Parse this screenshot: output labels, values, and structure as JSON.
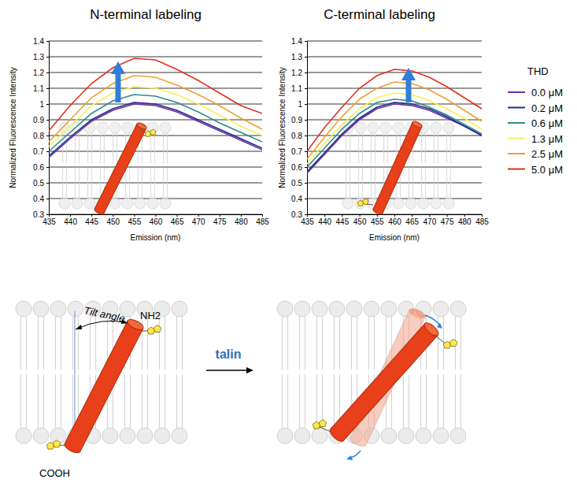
{
  "chart_data": [
    {
      "type": "line",
      "title": "N-terminal labeling",
      "x_label": "Emission (nm)",
      "y_label": "Normalized Fluorescence Intensity",
      "x": [
        435,
        440,
        445,
        450,
        455,
        460,
        465,
        470,
        475,
        480,
        485
      ],
      "xlim": [
        435,
        485
      ],
      "xticks": [
        435,
        440,
        445,
        450,
        455,
        460,
        465,
        470,
        475,
        480,
        485
      ],
      "ylim": [
        0.3,
        1.4
      ],
      "yticks": [
        0.3,
        0.4,
        0.5,
        0.6,
        0.7,
        0.8,
        0.9,
        1,
        1.1,
        1.2,
        1.3,
        1.4
      ],
      "grid": true,
      "series": [
        {
          "color": "#7030a0",
          "values": [
            0.66,
            0.78,
            0.89,
            0.96,
            1.0,
            0.99,
            0.95,
            0.89,
            0.83,
            0.77,
            0.71
          ]
        },
        {
          "color": "#1f2a8f",
          "values": [
            0.67,
            0.79,
            0.9,
            0.97,
            1.01,
            1.0,
            0.96,
            0.9,
            0.84,
            0.78,
            0.72
          ]
        },
        {
          "color": "#2e8b8b",
          "values": [
            0.7,
            0.82,
            0.94,
            1.02,
            1.06,
            1.05,
            1.01,
            0.95,
            0.88,
            0.82,
            0.76
          ]
        },
        {
          "color": "#f2f25a",
          "values": [
            0.73,
            0.86,
            0.99,
            1.07,
            1.11,
            1.1,
            1.06,
            1.0,
            0.93,
            0.86,
            0.8
          ]
        },
        {
          "color": "#f0a030",
          "values": [
            0.76,
            0.9,
            1.04,
            1.13,
            1.18,
            1.17,
            1.12,
            1.06,
            0.99,
            0.91,
            0.84
          ]
        },
        {
          "color": "#e0301e",
          "values": [
            0.83,
            0.99,
            1.13,
            1.23,
            1.29,
            1.28,
            1.22,
            1.15,
            1.07,
            0.99,
            0.94
          ]
        }
      ]
    },
    {
      "type": "line",
      "title": "C-terminal labeling",
      "x_label": "Emission (nm)",
      "y_label": "Normalized Fluorescence Intensity",
      "x": [
        435,
        440,
        445,
        450,
        455,
        460,
        465,
        470,
        475,
        480,
        485
      ],
      "xlim": [
        435,
        485
      ],
      "xticks": [
        435,
        440,
        445,
        450,
        455,
        460,
        465,
        470,
        475,
        480,
        485
      ],
      "ylim": [
        0.3,
        1.4
      ],
      "yticks": [
        0.3,
        0.4,
        0.5,
        0.6,
        0.7,
        0.8,
        0.9,
        1,
        1.1,
        1.2,
        1.3,
        1.4
      ],
      "grid": true,
      "legend": "right",
      "legend_title": "THD",
      "series": [
        {
          "name": "0.0 μM",
          "color": "#7030a0",
          "values": [
            0.56,
            0.68,
            0.8,
            0.9,
            0.97,
            1.0,
            0.99,
            0.96,
            0.91,
            0.86,
            0.8
          ]
        },
        {
          "name": "0.2 μM",
          "color": "#1f2a8f",
          "values": [
            0.57,
            0.69,
            0.81,
            0.91,
            0.98,
            1.01,
            1.0,
            0.97,
            0.92,
            0.86,
            0.8
          ]
        },
        {
          "name": "0.6 μM",
          "color": "#2e8b8b",
          "values": [
            0.6,
            0.72,
            0.84,
            0.94,
            1.01,
            1.03,
            1.02,
            0.98,
            0.93,
            0.87,
            0.81
          ]
        },
        {
          "name": "1.3 μM",
          "color": "#f2f25a",
          "values": [
            0.62,
            0.75,
            0.87,
            0.97,
            1.04,
            1.07,
            1.06,
            1.02,
            0.97,
            0.91,
            0.84
          ]
        },
        {
          "name": "2.5 μM",
          "color": "#f0a030",
          "values": [
            0.65,
            0.79,
            0.92,
            1.03,
            1.1,
            1.14,
            1.13,
            1.09,
            1.03,
            0.96,
            0.89
          ]
        },
        {
          "name": "5.0 μM",
          "color": "#e0301e",
          "values": [
            0.7,
            0.85,
            0.98,
            1.1,
            1.18,
            1.22,
            1.21,
            1.17,
            1.11,
            1.04,
            0.97
          ]
        }
      ]
    }
  ],
  "diagram": {
    "tilt_label": "Tilt angle",
    "n_terminus": "NH2",
    "c_terminus": "COOH",
    "arrow_label": "talin"
  }
}
